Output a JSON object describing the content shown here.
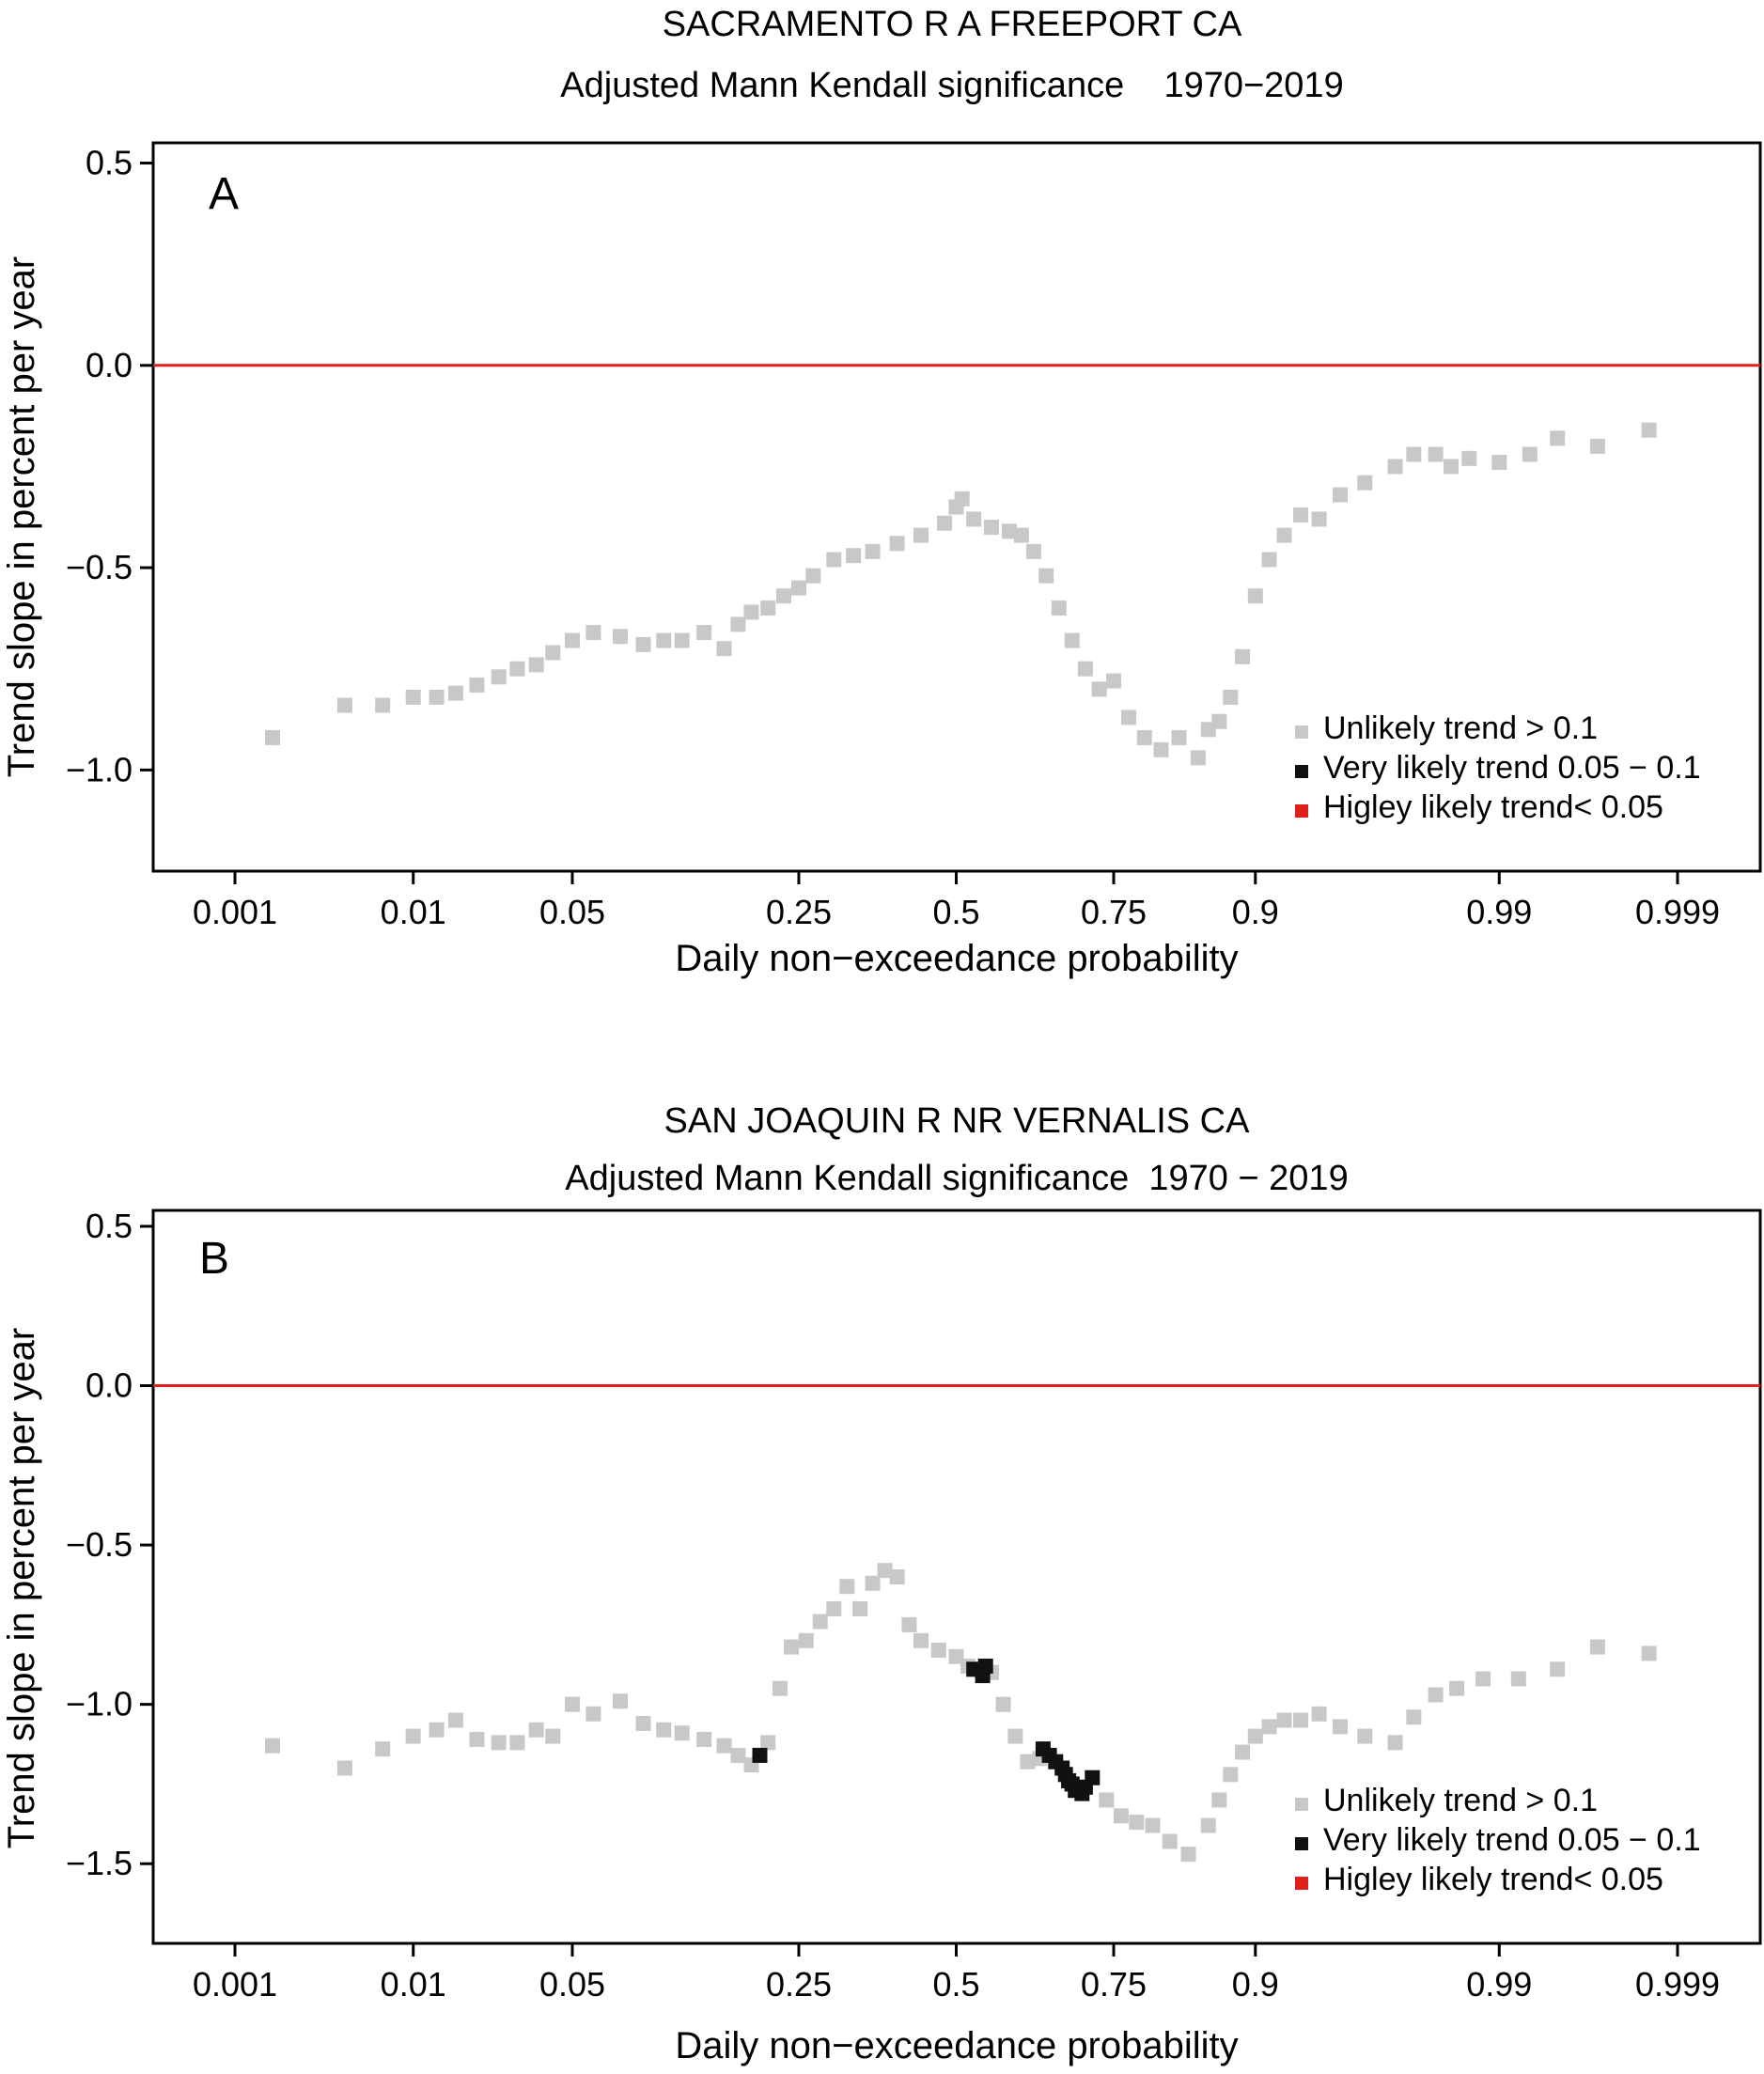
{
  "chart_data": [
    {
      "type": "scatter",
      "panel_label": "A",
      "title": "SACRAMENTO R A FREEPORT CA",
      "subtitle": "Adjusted Mann Kendall significance    1970−2019",
      "xlabel": "Daily non−exceedance probability",
      "ylabel": "Trend slope in percent per year",
      "x_scale": "normal-probability",
      "ylim": [
        -1.25,
        0.55
      ],
      "y_ticks": [
        0.5,
        0.0,
        -0.5,
        -1.0
      ],
      "y_tick_labels": [
        "0.5",
        "0.0",
        "−0.5",
        "−1.0"
      ],
      "x_ticks": [
        0.001,
        0.01,
        0.05,
        0.25,
        0.5,
        0.75,
        0.9,
        0.99,
        0.999
      ],
      "x_tick_labels": [
        "0.001",
        "0.01",
        "0.05",
        "0.25",
        "0.5",
        "0.75",
        "0.9",
        "0.99",
        "0.999"
      ],
      "reference_line": {
        "y": 0.0,
        "color": "#e0201b"
      },
      "legend": {
        "position": "bottom-right",
        "entries": [
          {
            "label": "Unlikely trend > 0.1",
            "color": "#c8c8c8"
          },
          {
            "label": "Very likely trend 0.05 − 0.1",
            "color": "#111111"
          },
          {
            "label": "Higley likely trend< 0.05",
            "color": "#e0201b"
          }
        ]
      },
      "series": [
        {
          "category": "unlikely",
          "color": "#c8c8c8",
          "points": [
            [
              0.0017,
              -0.92
            ],
            [
              0.0044,
              -0.84
            ],
            [
              0.007,
              -0.84
            ],
            [
              0.01,
              -0.82
            ],
            [
              0.013,
              -0.82
            ],
            [
              0.016,
              -0.81
            ],
            [
              0.02,
              -0.79
            ],
            [
              0.025,
              -0.77
            ],
            [
              0.03,
              -0.75
            ],
            [
              0.036,
              -0.74
            ],
            [
              0.042,
              -0.71
            ],
            [
              0.05,
              -0.68
            ],
            [
              0.06,
              -0.66
            ],
            [
              0.075,
              -0.67
            ],
            [
              0.09,
              -0.69
            ],
            [
              0.105,
              -0.68
            ],
            [
              0.12,
              -0.68
            ],
            [
              0.14,
              -0.66
            ],
            [
              0.16,
              -0.7
            ],
            [
              0.175,
              -0.64
            ],
            [
              0.19,
              -0.61
            ],
            [
              0.21,
              -0.6
            ],
            [
              0.23,
              -0.57
            ],
            [
              0.25,
              -0.55
            ],
            [
              0.27,
              -0.52
            ],
            [
              0.3,
              -0.48
            ],
            [
              0.33,
              -0.47
            ],
            [
              0.36,
              -0.46
            ],
            [
              0.4,
              -0.44
            ],
            [
              0.44,
              -0.42
            ],
            [
              0.48,
              -0.39
            ],
            [
              0.5,
              -0.35
            ],
            [
              0.51,
              -0.33
            ],
            [
              0.53,
              -0.38
            ],
            [
              0.56,
              -0.4
            ],
            [
              0.59,
              -0.41
            ],
            [
              0.61,
              -0.42
            ],
            [
              0.63,
              -0.46
            ],
            [
              0.65,
              -0.52
            ],
            [
              0.67,
              -0.6
            ],
            [
              0.69,
              -0.68
            ],
            [
              0.71,
              -0.75
            ],
            [
              0.73,
              -0.8
            ],
            [
              0.75,
              -0.78
            ],
            [
              0.77,
              -0.87
            ],
            [
              0.79,
              -0.92
            ],
            [
              0.81,
              -0.95
            ],
            [
              0.83,
              -0.92
            ],
            [
              0.85,
              -0.97
            ],
            [
              0.86,
              -0.9
            ],
            [
              0.87,
              -0.88
            ],
            [
              0.88,
              -0.82
            ],
            [
              0.89,
              -0.72
            ],
            [
              0.9,
              -0.57
            ],
            [
              0.91,
              -0.48
            ],
            [
              0.92,
              -0.42
            ],
            [
              0.93,
              -0.37
            ],
            [
              0.94,
              -0.38
            ],
            [
              0.95,
              -0.32
            ],
            [
              0.96,
              -0.29
            ],
            [
              0.97,
              -0.25
            ],
            [
              0.975,
              -0.22
            ],
            [
              0.98,
              -0.22
            ],
            [
              0.983,
              -0.25
            ],
            [
              0.986,
              -0.23
            ],
            [
              0.99,
              -0.24
            ],
            [
              0.993,
              -0.22
            ],
            [
              0.995,
              -0.18
            ],
            [
              0.997,
              -0.2
            ],
            [
              0.9985,
              -0.16
            ]
          ]
        },
        {
          "category": "very_likely",
          "color": "#111111",
          "points": []
        },
        {
          "category": "highly_likely",
          "color": "#e0201b",
          "points": []
        }
      ]
    },
    {
      "type": "scatter",
      "panel_label": "B",
      "title": "SAN JOAQUIN R NR VERNALIS CA",
      "subtitle": "Adjusted Mann Kendall significance  1970 − 2019",
      "xlabel": "Daily non−exceedance probability",
      "ylabel": "Trend slope in percent per year",
      "x_scale": "normal-probability",
      "ylim": [
        -1.75,
        0.55
      ],
      "y_ticks": [
        0.5,
        0.0,
        -0.5,
        -1.0,
        -1.5
      ],
      "y_tick_labels": [
        "0.5",
        "0.0",
        "−0.5",
        "−1.0",
        "−1.5"
      ],
      "x_ticks": [
        0.001,
        0.01,
        0.05,
        0.25,
        0.5,
        0.75,
        0.9,
        0.99,
        0.999
      ],
      "x_tick_labels": [
        "0.001",
        "0.01",
        "0.05",
        "0.25",
        "0.5",
        "0.75",
        "0.9",
        "0.99",
        "0.999"
      ],
      "reference_line": {
        "y": 0.0,
        "color": "#e0201b"
      },
      "legend": {
        "position": "bottom-right",
        "entries": [
          {
            "label": "Unlikely trend > 0.1",
            "color": "#c8c8c8"
          },
          {
            "label": "Very likely trend 0.05 − 0.1",
            "color": "#111111"
          },
          {
            "label": "Higley likely trend< 0.05",
            "color": "#e0201b"
          }
        ]
      },
      "series": [
        {
          "category": "unlikely",
          "color": "#c8c8c8",
          "points": [
            [
              0.0017,
              -1.13
            ],
            [
              0.0044,
              -1.2
            ],
            [
              0.007,
              -1.14
            ],
            [
              0.01,
              -1.1
            ],
            [
              0.013,
              -1.08
            ],
            [
              0.016,
              -1.05
            ],
            [
              0.02,
              -1.11
            ],
            [
              0.025,
              -1.12
            ],
            [
              0.03,
              -1.12
            ],
            [
              0.036,
              -1.08
            ],
            [
              0.042,
              -1.1
            ],
            [
              0.05,
              -1.0
            ],
            [
              0.06,
              -1.03
            ],
            [
              0.075,
              -0.99
            ],
            [
              0.09,
              -1.06
            ],
            [
              0.105,
              -1.08
            ],
            [
              0.12,
              -1.09
            ],
            [
              0.14,
              -1.11
            ],
            [
              0.16,
              -1.13
            ],
            [
              0.175,
              -1.16
            ],
            [
              0.19,
              -1.19
            ],
            [
              0.21,
              -1.12
            ],
            [
              0.225,
              -0.95
            ],
            [
              0.24,
              -0.82
            ],
            [
              0.26,
              -0.8
            ],
            [
              0.28,
              -0.74
            ],
            [
              0.3,
              -0.7
            ],
            [
              0.32,
              -0.63
            ],
            [
              0.34,
              -0.7
            ],
            [
              0.36,
              -0.62
            ],
            [
              0.38,
              -0.58
            ],
            [
              0.4,
              -0.6
            ],
            [
              0.42,
              -0.75
            ],
            [
              0.44,
              -0.8
            ],
            [
              0.47,
              -0.83
            ],
            [
              0.5,
              -0.85
            ],
            [
              0.52,
              -0.88
            ],
            [
              0.56,
              -0.9
            ],
            [
              0.58,
              -1.0
            ],
            [
              0.6,
              -1.1
            ],
            [
              0.62,
              -1.18
            ],
            [
              0.64,
              -1.17
            ],
            [
              0.7,
              -1.26
            ],
            [
              0.74,
              -1.3
            ],
            [
              0.76,
              -1.35
            ],
            [
              0.78,
              -1.37
            ],
            [
              0.8,
              -1.38
            ],
            [
              0.82,
              -1.43
            ],
            [
              0.84,
              -1.47
            ],
            [
              0.86,
              -1.38
            ],
            [
              0.87,
              -1.3
            ],
            [
              0.88,
              -1.22
            ],
            [
              0.89,
              -1.15
            ],
            [
              0.9,
              -1.1
            ],
            [
              0.91,
              -1.07
            ],
            [
              0.92,
              -1.05
            ],
            [
              0.93,
              -1.05
            ],
            [
              0.94,
              -1.03
            ],
            [
              0.95,
              -1.07
            ],
            [
              0.96,
              -1.1
            ],
            [
              0.97,
              -1.12
            ],
            [
              0.975,
              -1.04
            ],
            [
              0.98,
              -0.97
            ],
            [
              0.984,
              -0.95
            ],
            [
              0.988,
              -0.92
            ],
            [
              0.992,
              -0.92
            ],
            [
              0.995,
              -0.89
            ],
            [
              0.997,
              -0.82
            ],
            [
              0.9985,
              -0.84
            ]
          ]
        },
        {
          "category": "very_likely",
          "color": "#111111",
          "points": [
            [
              0.2,
              -1.16
            ],
            [
              0.53,
              -0.89
            ],
            [
              0.545,
              -0.91
            ],
            [
              0.55,
              -0.88
            ],
            [
              0.645,
              -1.14
            ],
            [
              0.655,
              -1.16
            ],
            [
              0.665,
              -1.18
            ],
            [
              0.675,
              -1.2
            ],
            [
              0.68,
              -1.22
            ],
            [
              0.685,
              -1.24
            ],
            [
              0.69,
              -1.25
            ],
            [
              0.695,
              -1.27
            ],
            [
              0.705,
              -1.28
            ],
            [
              0.71,
              -1.26
            ],
            [
              0.72,
              -1.23
            ]
          ]
        },
        {
          "category": "highly_likely",
          "color": "#e0201b",
          "points": []
        }
      ]
    }
  ]
}
